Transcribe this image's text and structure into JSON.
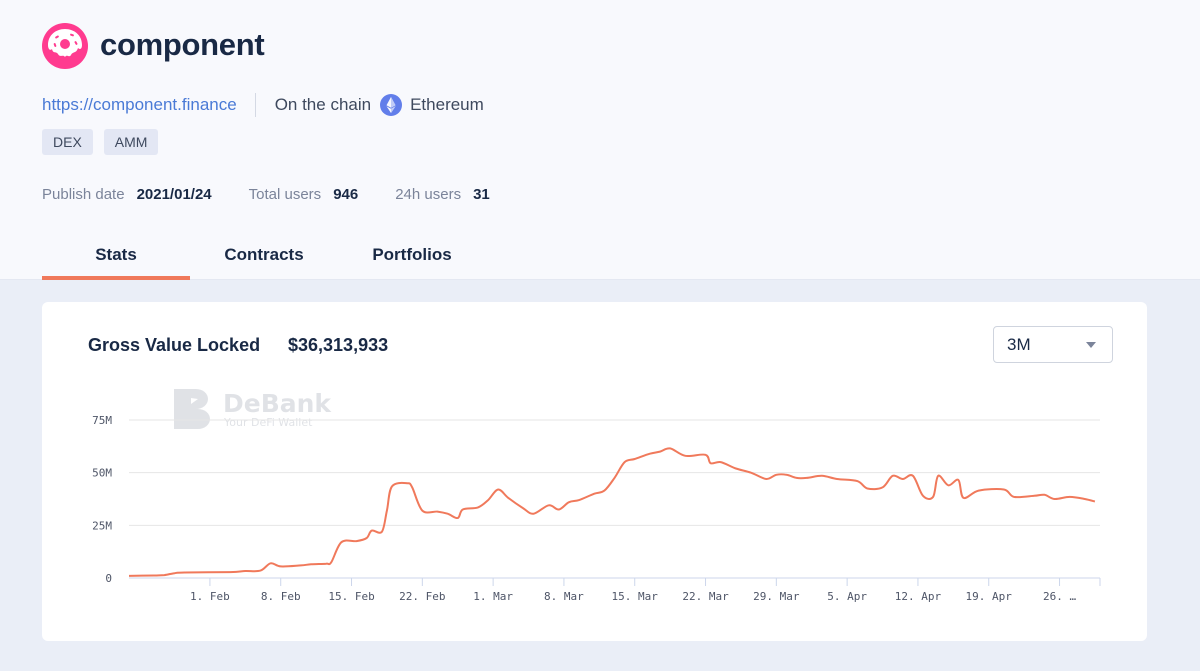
{
  "project": {
    "name": "component",
    "url": "https://component.finance",
    "chain_label": "On the chain",
    "chain_name": "Ethereum",
    "chain_icon": "ethereum-icon",
    "logo_icon": "donut-icon",
    "tags": [
      "DEX",
      "AMM"
    ]
  },
  "stats": {
    "publish_date_label": "Publish date",
    "publish_date": "2021/01/24",
    "total_users_label": "Total users",
    "total_users": "946",
    "users_24h_label": "24h users",
    "users_24h": "31"
  },
  "tabs": [
    {
      "label": "Stats",
      "active": true
    },
    {
      "label": "Contracts",
      "active": false
    },
    {
      "label": "Portfolios",
      "active": false
    }
  ],
  "card": {
    "title": "Gross Value Locked",
    "amount": "$36,313,933",
    "period": "3M"
  },
  "watermark": {
    "brand": "DeBank",
    "tagline": "Your DeFi Wallet"
  },
  "colors": {
    "accent": "#f0795b",
    "line": "#f0795b",
    "link": "#4a7ad6",
    "text": "#192945"
  },
  "chart_data": {
    "type": "line",
    "x_unit": "days since 2021-01-24",
    "ylim": [
      0,
      75000000
    ],
    "yticks": [
      {
        "v": 0,
        "label": "0"
      },
      {
        "v": 25000000,
        "label": "25M"
      },
      {
        "v": 50000000,
        "label": "50M"
      },
      {
        "v": 75000000,
        "label": "75M"
      }
    ],
    "xlim": [
      0,
      96
    ],
    "xticks": [
      {
        "d": 8,
        "label": "1. Feb"
      },
      {
        "d": 15,
        "label": "8. Feb"
      },
      {
        "d": 22,
        "label": "15. Feb"
      },
      {
        "d": 29,
        "label": "22. Feb"
      },
      {
        "d": 36,
        "label": "1. Mar"
      },
      {
        "d": 43,
        "label": "8. Mar"
      },
      {
        "d": 50,
        "label": "15. Mar"
      },
      {
        "d": 57,
        "label": "22. Mar"
      },
      {
        "d": 64,
        "label": "29. Mar"
      },
      {
        "d": 71,
        "label": "5. Apr"
      },
      {
        "d": 78,
        "label": "12. Apr"
      },
      {
        "d": 85,
        "label": "19. Apr"
      },
      {
        "d": 92,
        "label": "26. …"
      }
    ],
    "series": [
      {
        "name": "Gross Value Locked",
        "points": [
          [
            0,
            1000000
          ],
          [
            2.5,
            1200000
          ],
          [
            3.5,
            1400000
          ],
          [
            4.5,
            2300000
          ],
          [
            5.5,
            2600000
          ],
          [
            10,
            2800000
          ],
          [
            11.5,
            3300000
          ],
          [
            13,
            3500000
          ],
          [
            14,
            7000000
          ],
          [
            15,
            5500000
          ],
          [
            17,
            6000000
          ],
          [
            18,
            6500000
          ],
          [
            19.5,
            6800000
          ],
          [
            20,
            7500000
          ],
          [
            21,
            17000000
          ],
          [
            22.5,
            17500000
          ],
          [
            23.5,
            19000000
          ],
          [
            24,
            22500000
          ],
          [
            25,
            22000000
          ],
          [
            25.5,
            32000000
          ],
          [
            26,
            43500000
          ],
          [
            27.5,
            45000000
          ],
          [
            28,
            43000000
          ],
          [
            29,
            32000000
          ],
          [
            30.5,
            31500000
          ],
          [
            31.5,
            30500000
          ],
          [
            32.5,
            28500000
          ],
          [
            33,
            32500000
          ],
          [
            34.5,
            33500000
          ],
          [
            35.5,
            37000000
          ],
          [
            36.5,
            42000000
          ],
          [
            37.5,
            38000000
          ],
          [
            39,
            33000000
          ],
          [
            40,
            30500000
          ],
          [
            41.5,
            34500000
          ],
          [
            42.5,
            32500000
          ],
          [
            43.5,
            36000000
          ],
          [
            44.5,
            37000000
          ],
          [
            46,
            40000000
          ],
          [
            47,
            41500000
          ],
          [
            48,
            47500000
          ],
          [
            49,
            55000000
          ],
          [
            50,
            56500000
          ],
          [
            51.5,
            59000000
          ],
          [
            52.5,
            60000000
          ],
          [
            53.5,
            61500000
          ],
          [
            55,
            58000000
          ],
          [
            57,
            58500000
          ],
          [
            57.5,
            54500000
          ],
          [
            58.5,
            55000000
          ],
          [
            60,
            52000000
          ],
          [
            61.5,
            50000000
          ],
          [
            63,
            47000000
          ],
          [
            64,
            49000000
          ],
          [
            65,
            49000000
          ],
          [
            66,
            47500000
          ],
          [
            67,
            47500000
          ],
          [
            68.5,
            48500000
          ],
          [
            70,
            47000000
          ],
          [
            72,
            46000000
          ],
          [
            73,
            42500000
          ],
          [
            74.5,
            43000000
          ],
          [
            75.5,
            48500000
          ],
          [
            76.5,
            47000000
          ],
          [
            77.5,
            48500000
          ],
          [
            78.5,
            39000000
          ],
          [
            79.5,
            38500000
          ],
          [
            80,
            48500000
          ],
          [
            81,
            44000000
          ],
          [
            82,
            46500000
          ],
          [
            82.5,
            38000000
          ],
          [
            84,
            41500000
          ],
          [
            86.5,
            42000000
          ],
          [
            87.5,
            38500000
          ],
          [
            89.5,
            39000000
          ],
          [
            90.5,
            39500000
          ],
          [
            91.5,
            37500000
          ],
          [
            93,
            38500000
          ],
          [
            94.5,
            37500000
          ],
          [
            95.5,
            36300000
          ]
        ]
      }
    ]
  }
}
